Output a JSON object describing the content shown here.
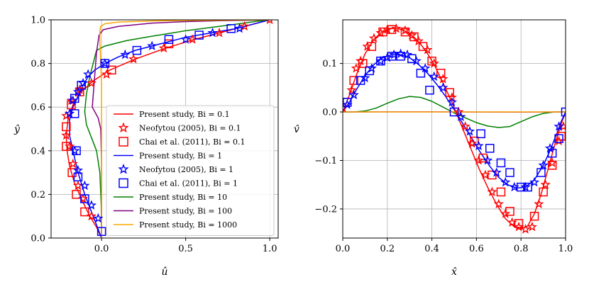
{
  "chart_data": [
    {
      "type": "line",
      "panel": "left",
      "xlabel": "û",
      "ylabel": "ŷ",
      "xlim": [
        -0.3,
        1.05
      ],
      "ylim": [
        0,
        1.0
      ],
      "xticks": [
        0.0,
        0.5,
        1.0
      ],
      "xtick_labels": [
        "0.0",
        "0.5",
        "1.0"
      ],
      "yticks": [
        0.0,
        0.2,
        0.4,
        0.6,
        0.8,
        1.0
      ],
      "ytick_labels": [
        "0.0",
        "0.2",
        "0.4",
        "0.6",
        "0.8",
        "1.0"
      ],
      "grid": true,
      "legend_position": "lower-right",
      "legend": [
        {
          "label": "Present study, Bi = 0.1",
          "color": "#ff0000",
          "style": "line"
        },
        {
          "label": "Neofytou (2005), Bi = 0.1",
          "color": "#ff0000",
          "style": "star"
        },
        {
          "label": "Chai et al. (2011), Bi = 0.1",
          "color": "#ff0000",
          "style": "square"
        },
        {
          "label": "Present study, Bi = 1",
          "color": "#0000ff",
          "style": "line"
        },
        {
          "label": "Neofytou (2005), Bi = 1",
          "color": "#0000ff",
          "style": "star"
        },
        {
          "label": "Chai et al. (2011), Bi = 1",
          "color": "#0000ff",
          "style": "square"
        },
        {
          "label": "Present study, Bi = 10",
          "color": "#008000",
          "style": "line"
        },
        {
          "label": "Present study, Bi = 100",
          "color": "#800080",
          "style": "line"
        },
        {
          "label": "Present study, Bi = 1000",
          "color": "#ffa500",
          "style": "line"
        }
      ],
      "series": [
        {
          "name": "Present study, Bi = 0.1",
          "color": "#ff0000",
          "kind": "line",
          "x": [
            0.0,
            -0.03,
            -0.07,
            -0.12,
            -0.16,
            -0.19,
            -0.205,
            -0.21,
            -0.2,
            -0.17,
            -0.12,
            -0.05,
            0.05,
            0.2,
            0.38,
            0.55,
            0.7,
            0.85,
            1.0
          ],
          "y": [
            0.0,
            0.05,
            0.1,
            0.18,
            0.25,
            0.33,
            0.4,
            0.47,
            0.54,
            0.61,
            0.67,
            0.72,
            0.77,
            0.82,
            0.87,
            0.91,
            0.94,
            0.97,
            1.0
          ]
        },
        {
          "name": "Neofytou (2005), Bi = 0.1",
          "color": "#ff0000",
          "kind": "star",
          "x": [
            -0.06,
            -0.11,
            -0.14,
            -0.17,
            -0.19,
            -0.21,
            -0.21,
            -0.18,
            -0.13,
            -0.06,
            0.03,
            0.19,
            0.37,
            0.54,
            0.7,
            0.85,
            1.0
          ],
          "y": [
            0.1,
            0.18,
            0.24,
            0.34,
            0.42,
            0.47,
            0.56,
            0.63,
            0.68,
            0.71,
            0.75,
            0.82,
            0.87,
            0.91,
            0.94,
            0.97,
            1.0
          ]
        },
        {
          "name": "Chai et al. (2011), Bi = 0.1",
          "color": "#ff0000",
          "kind": "square",
          "x": [
            -0.1,
            -0.15,
            -0.175,
            -0.21,
            -0.21,
            -0.18,
            -0.13,
            0.06,
            0.4
          ],
          "y": [
            0.12,
            0.2,
            0.3,
            0.42,
            0.51,
            0.61,
            0.67,
            0.77,
            0.89
          ]
        },
        {
          "name": "Present study, Bi = 1",
          "color": "#0000ff",
          "kind": "line",
          "x": [
            0.0,
            -0.03,
            -0.06,
            -0.1,
            -0.14,
            -0.17,
            -0.19,
            -0.19,
            -0.17,
            -0.14,
            -0.11,
            -0.08,
            -0.04,
            0.02,
            0.1,
            0.2,
            0.35,
            0.5,
            0.65,
            0.8,
            1.0
          ],
          "y": [
            0.0,
            0.06,
            0.12,
            0.2,
            0.3,
            0.4,
            0.47,
            0.54,
            0.6,
            0.65,
            0.7,
            0.74,
            0.77,
            0.8,
            0.83,
            0.86,
            0.89,
            0.92,
            0.94,
            0.96,
            1.0
          ]
        },
        {
          "name": "Neofytou (2005), Bi = 1",
          "color": "#0000ff",
          "kind": "star",
          "x": [
            -0.02,
            -0.06,
            -0.1,
            -0.14,
            -0.16,
            -0.19,
            -0.17,
            -0.14,
            -0.11,
            -0.08,
            0.02,
            0.14,
            0.3,
            0.5,
            0.66,
            0.82
          ],
          "y": [
            0.09,
            0.15,
            0.24,
            0.31,
            0.4,
            0.57,
            0.63,
            0.67,
            0.71,
            0.75,
            0.8,
            0.84,
            0.88,
            0.91,
            0.94,
            0.96
          ]
        },
        {
          "name": "Chai et al. (2011), Bi = 1",
          "color": "#0000ff",
          "kind": "square",
          "x": [
            0.0,
            -0.1,
            -0.14,
            -0.15,
            -0.16,
            -0.16,
            -0.12,
            0.02,
            0.21,
            0.4,
            0.58,
            0.77
          ],
          "y": [
            0.03,
            0.18,
            0.28,
            0.4,
            0.57,
            0.64,
            0.7,
            0.8,
            0.86,
            0.91,
            0.93,
            0.96
          ]
        },
        {
          "name": "Present study, Bi = 10",
          "color": "#008000",
          "kind": "line",
          "x": [
            0.0,
            -0.002,
            -0.01,
            -0.03,
            -0.06,
            -0.09,
            -0.1,
            -0.09,
            -0.07,
            -0.05,
            -0.03,
            0.02,
            0.15,
            0.3,
            0.5,
            0.65,
            0.8,
            0.92,
            1.0
          ],
          "y": [
            0.0,
            0.15,
            0.3,
            0.4,
            0.46,
            0.52,
            0.58,
            0.66,
            0.74,
            0.8,
            0.86,
            0.88,
            0.905,
            0.925,
            0.95,
            0.965,
            0.98,
            0.993,
            1.0
          ]
        },
        {
          "name": "Present study, Bi = 100",
          "color": "#800080",
          "kind": "line",
          "x": [
            0.0,
            0.0,
            -0.005,
            -0.02,
            -0.055,
            -0.05,
            -0.04,
            -0.03,
            -0.015,
            0.01,
            0.1,
            0.3,
            0.5,
            0.7,
            0.85,
            1.0
          ],
          "y": [
            0.0,
            0.35,
            0.5,
            0.55,
            0.6,
            0.65,
            0.75,
            0.85,
            0.93,
            0.955,
            0.97,
            0.985,
            0.992,
            0.996,
            0.998,
            1.0
          ]
        },
        {
          "name": "Present study, Bi = 1000",
          "color": "#ffa500",
          "kind": "line",
          "x": [
            0.0,
            0.0,
            0.0,
            -0.005,
            -0.01,
            -0.01,
            -0.005,
            0.02,
            0.1,
            0.3,
            0.5,
            0.7,
            0.85,
            1.0
          ],
          "y": [
            0.0,
            0.5,
            0.7,
            0.8,
            0.9,
            0.95,
            0.97,
            0.982,
            0.99,
            0.995,
            0.997,
            0.998,
            0.999,
            1.0
          ]
        }
      ]
    },
    {
      "type": "line",
      "panel": "right",
      "xlabel": "x̂",
      "ylabel": "v̂",
      "xlim": [
        0.0,
        1.0
      ],
      "ylim": [
        -0.26,
        0.19
      ],
      "xticks": [
        0.0,
        0.2,
        0.4,
        0.6,
        0.8,
        1.0
      ],
      "xtick_labels": [
        "0.0",
        "0.2",
        "0.4",
        "0.6",
        "0.8",
        "1.0"
      ],
      "yticks": [
        0.1,
        0.0,
        -0.1,
        -0.2
      ],
      "ytick_labels": [
        "0.1",
        "0.0",
        "−0.1",
        "−0.2"
      ],
      "grid": true,
      "series": [
        {
          "name": "Present study, Bi = 0.1",
          "color": "#ff0000",
          "kind": "line",
          "x": [
            0.0,
            0.03,
            0.06,
            0.1,
            0.14,
            0.18,
            0.22,
            0.25,
            0.29,
            0.33,
            0.37,
            0.41,
            0.45,
            0.49,
            0.53,
            0.57,
            0.61,
            0.65,
            0.69,
            0.73,
            0.77,
            0.8,
            0.83,
            0.86,
            0.89,
            0.92,
            0.95,
            0.98,
            1.0
          ],
          "y": [
            0.0,
            0.035,
            0.075,
            0.12,
            0.15,
            0.167,
            0.172,
            0.172,
            0.165,
            0.15,
            0.128,
            0.098,
            0.06,
            0.02,
            -0.025,
            -0.07,
            -0.115,
            -0.155,
            -0.19,
            -0.22,
            -0.237,
            -0.242,
            -0.235,
            -0.21,
            -0.17,
            -0.12,
            -0.07,
            -0.025,
            0.0
          ]
        },
        {
          "name": "Neofytou (2005), Bi = 0.1",
          "color": "#ff0000",
          "kind": "star",
          "x": [
            0.0,
            0.04,
            0.06,
            0.08,
            0.11,
            0.14,
            0.17,
            0.2,
            0.24,
            0.28,
            0.31,
            0.34,
            0.38,
            0.41,
            0.45,
            0.49,
            0.52,
            0.55,
            0.58,
            0.61,
            0.64,
            0.67,
            0.7,
            0.73,
            0.76,
            0.79,
            0.82,
            0.85,
            0.88,
            0.91,
            0.94,
            0.97,
            0.99
          ],
          "y": [
            0.008,
            0.045,
            0.09,
            0.105,
            0.135,
            0.152,
            0.163,
            0.17,
            0.172,
            0.168,
            0.158,
            0.146,
            0.128,
            0.1,
            0.068,
            0.03,
            0.0,
            -0.03,
            -0.065,
            -0.1,
            -0.13,
            -0.165,
            -0.19,
            -0.21,
            -0.228,
            -0.237,
            -0.242,
            -0.237,
            -0.19,
            -0.15,
            -0.105,
            -0.06,
            -0.03
          ]
        },
        {
          "name": "Chai et al. (2011), Bi = 0.1",
          "color": "#ff0000",
          "kind": "square",
          "x": [
            0.02,
            0.05,
            0.09,
            0.13,
            0.18,
            0.22,
            0.28,
            0.32,
            0.36,
            0.4,
            0.44,
            0.48,
            0.59,
            0.63,
            0.67,
            0.71,
            0.75,
            0.79,
            0.86,
            0.9,
            0.94,
            0.98
          ],
          "y": [
            0.02,
            0.065,
            0.1,
            0.135,
            0.165,
            0.17,
            0.165,
            0.155,
            0.135,
            0.105,
            0.08,
            0.04,
            -0.06,
            -0.095,
            -0.13,
            -0.165,
            -0.205,
            -0.23,
            -0.215,
            -0.165,
            -0.11,
            -0.05
          ]
        },
        {
          "name": "Present study, Bi = 1",
          "color": "#0000ff",
          "kind": "line",
          "x": [
            0.0,
            0.03,
            0.06,
            0.1,
            0.14,
            0.18,
            0.22,
            0.26,
            0.3,
            0.34,
            0.38,
            0.42,
            0.46,
            0.5,
            0.54,
            0.58,
            0.62,
            0.66,
            0.7,
            0.74,
            0.78,
            0.82,
            0.86,
            0.9,
            0.93,
            0.96,
            0.98,
            1.0
          ],
          "y": [
            0.0,
            0.02,
            0.045,
            0.075,
            0.098,
            0.112,
            0.118,
            0.118,
            0.112,
            0.098,
            0.08,
            0.058,
            0.033,
            0.005,
            -0.025,
            -0.055,
            -0.085,
            -0.112,
            -0.135,
            -0.15,
            -0.157,
            -0.155,
            -0.14,
            -0.11,
            -0.08,
            -0.045,
            -0.02,
            0.0
          ]
        },
        {
          "name": "Neofytou (2005), Bi = 1",
          "color": "#0000ff",
          "kind": "star",
          "x": [
            0.02,
            0.05,
            0.1,
            0.13,
            0.17,
            0.2,
            0.23,
            0.26,
            0.29,
            0.33,
            0.37,
            0.41,
            0.45,
            0.49,
            0.53,
            0.57,
            0.61,
            0.65,
            0.69,
            0.73,
            0.77,
            0.82,
            0.86,
            0.9,
            0.93,
            0.97
          ],
          "y": [
            0.015,
            0.035,
            0.07,
            0.09,
            0.105,
            0.112,
            0.118,
            0.12,
            0.118,
            0.105,
            0.09,
            0.073,
            0.05,
            0.02,
            -0.01,
            -0.04,
            -0.07,
            -0.1,
            -0.125,
            -0.145,
            -0.155,
            -0.155,
            -0.145,
            -0.11,
            -0.075,
            -0.03
          ]
        },
        {
          "name": "Chai et al. (2011), Bi = 1",
          "color": "#0000ff",
          "kind": "square",
          "x": [
            0.02,
            0.08,
            0.12,
            0.17,
            0.22,
            0.26,
            0.31,
            0.35,
            0.39,
            0.5,
            0.62,
            0.66,
            0.71,
            0.75,
            0.8,
            0.83,
            0.89,
            0.94,
            0.97,
            1.0
          ],
          "y": [
            0.02,
            0.065,
            0.085,
            0.105,
            0.115,
            0.115,
            0.11,
            0.08,
            0.045,
            0.0,
            -0.045,
            -0.075,
            -0.105,
            -0.125,
            -0.155,
            -0.155,
            -0.125,
            -0.085,
            -0.055,
            0.0
          ]
        },
        {
          "name": "Present study, Bi = 10",
          "color": "#008000",
          "kind": "line",
          "x": [
            0.0,
            0.05,
            0.1,
            0.15,
            0.2,
            0.25,
            0.3,
            0.35,
            0.4,
            0.45,
            0.5,
            0.55,
            0.6,
            0.65,
            0.7,
            0.75,
            0.8,
            0.85,
            0.9,
            0.95,
            1.0
          ],
          "y": [
            0.0,
            0.0,
            0.002,
            0.008,
            0.018,
            0.027,
            0.032,
            0.03,
            0.022,
            0.01,
            -0.002,
            -0.012,
            -0.022,
            -0.029,
            -0.032,
            -0.03,
            -0.02,
            -0.01,
            -0.003,
            0.0,
            0.0
          ]
        },
        {
          "name": "Present study, Bi = 100",
          "color": "#800080",
          "kind": "line",
          "x": [
            0.0,
            0.2,
            0.4,
            0.5,
            0.6,
            0.8,
            1.0
          ],
          "y": [
            0.0,
            0.0003,
            0.0002,
            0.0,
            -0.0002,
            -0.0003,
            0.0
          ]
        },
        {
          "name": "Present study, Bi = 1000",
          "color": "#ffa500",
          "kind": "line",
          "x": [
            0.0,
            0.5,
            1.0
          ],
          "y": [
            0.0,
            0.0,
            0.0
          ]
        }
      ]
    }
  ]
}
